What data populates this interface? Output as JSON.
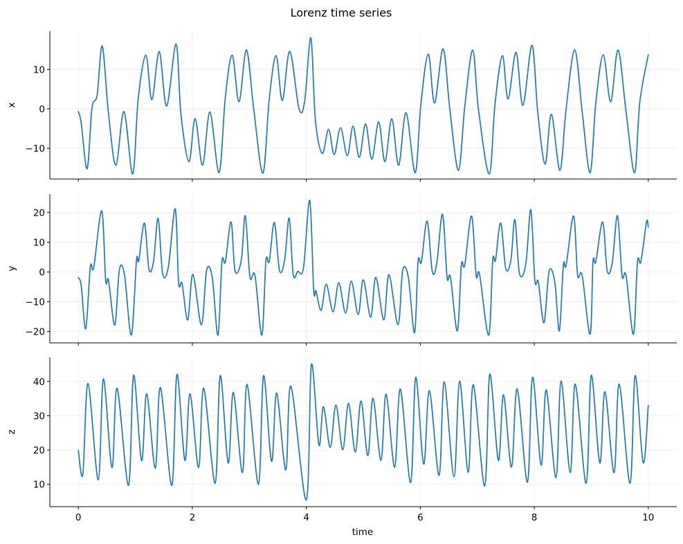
{
  "figure": {
    "title": "Lorenz time series",
    "xlabel": "time",
    "line_color": "#1f77b4"
  },
  "chart_data": {
    "type": "line",
    "title": "Lorenz time series",
    "xlabel": "time",
    "xlim": [
      -0.5,
      10.5
    ],
    "xticks": [
      0,
      2,
      4,
      6,
      8,
      10
    ],
    "grid": true,
    "legend": null,
    "subplots": [
      {
        "ylabel": "x",
        "ylim": [
          -17.8,
          19.7
        ],
        "yticks": [
          -10,
          0,
          10
        ],
        "t": [
          0,
          0.05,
          0.154,
          0.24,
          0.33,
          0.42,
          0.53,
          0.66,
          0.8,
          0.955,
          1.05,
          1.185,
          1.29,
          1.42,
          1.55,
          1.715,
          1.8,
          1.94,
          2.05,
          2.18,
          2.31,
          2.47,
          2.58,
          2.7,
          2.82,
          2.95,
          3.08,
          3.24,
          3.35,
          3.47,
          3.58,
          3.71,
          3.87,
          3.97,
          4.08,
          4.16,
          4.28,
          4.39,
          4.49,
          4.6,
          4.72,
          4.82,
          4.93,
          5.04,
          5.15,
          5.27,
          5.38,
          5.5,
          5.62,
          5.75,
          5.91,
          6.01,
          6.14,
          6.25,
          6.4,
          6.52,
          6.67,
          6.78,
          6.92,
          7.02,
          7.21,
          7.31,
          7.44,
          7.54,
          7.68,
          7.8,
          7.96,
          8.06,
          8.19,
          8.3,
          8.45,
          8.56,
          8.71,
          8.84,
          8.98,
          9.08,
          9.21,
          9.34,
          9.47,
          9.61,
          9.76,
          9.85,
          10.0
        ],
        "values": [
          -0.7,
          -3.5,
          -15.2,
          0.2,
          3.5,
          15.9,
          -1.2,
          -14.3,
          -0.7,
          -16.5,
          2.5,
          13.6,
          2.3,
          14.5,
          0.7,
          16.4,
          -1.2,
          -13.4,
          -2.5,
          -14.3,
          -0.8,
          -16.2,
          3.0,
          13.6,
          1.8,
          14.9,
          -0.4,
          -16.3,
          2.5,
          13.5,
          2.1,
          14.6,
          0.2,
          1.8,
          18.0,
          -3.0,
          -11.3,
          -5.2,
          -11.6,
          -4.8,
          -11.9,
          -4.4,
          -12.3,
          -3.8,
          -12.8,
          -3.3,
          -13.4,
          -2.5,
          -14.3,
          -1.0,
          -16.2,
          1.1,
          13.9,
          1.5,
          15.2,
          -0.4,
          -15.6,
          0.5,
          14.9,
          -0.1,
          -16.5,
          1.1,
          13.5,
          2.5,
          14.3,
          0.9,
          16.1,
          -0.7,
          -14.0,
          -1.4,
          -15.6,
          0.2,
          14.9,
          -0.7,
          -16.2,
          1.6,
          13.7,
          1.8,
          14.9,
          -0.7,
          -16.2,
          1.6,
          13.7
        ]
      },
      {
        "ylabel": "y",
        "ylim": [
          -23.8,
          26.1
        ],
        "yticks": [
          -20,
          -10,
          0,
          10,
          20
        ],
        "t": [
          0,
          0.05,
          0.13,
          0.21,
          0.27,
          0.41,
          0.48,
          0.53,
          0.64,
          0.72,
          0.81,
          0.93,
          1.02,
          1.06,
          1.16,
          1.24,
          1.32,
          1.4,
          1.48,
          1.58,
          1.7,
          1.76,
          1.82,
          1.92,
          2.01,
          2.16,
          2.25,
          2.35,
          2.45,
          2.52,
          2.58,
          2.68,
          2.75,
          2.86,
          2.93,
          3.01,
          3.1,
          3.22,
          3.29,
          3.35,
          3.44,
          3.53,
          3.62,
          3.7,
          3.77,
          3.85,
          3.95,
          4.06,
          4.13,
          4.17,
          4.26,
          4.35,
          4.47,
          4.57,
          4.69,
          4.79,
          4.91,
          5.0,
          5.13,
          5.22,
          5.36,
          5.45,
          5.61,
          5.69,
          5.79,
          5.9,
          5.96,
          6.02,
          6.12,
          6.21,
          6.29,
          6.39,
          6.47,
          6.53,
          6.65,
          6.72,
          6.78,
          6.9,
          6.98,
          7.04,
          7.2,
          7.27,
          7.32,
          7.41,
          7.5,
          7.59,
          7.66,
          7.74,
          7.85,
          7.94,
          8.01,
          8.07,
          8.17,
          8.26,
          8.36,
          8.44,
          8.51,
          8.56,
          8.69,
          8.76,
          8.84,
          8.98,
          9.03,
          9.08,
          9.2,
          9.28,
          9.37,
          9.46,
          9.54,
          9.61,
          9.74,
          9.81,
          9.87,
          9.97,
          10.0
        ],
        "values": [
          -1.9,
          -4.5,
          -19.1,
          1.7,
          1.5,
          20.5,
          -2.8,
          -2.8,
          -17.8,
          0.7,
          -1.0,
          -21.2,
          3.8,
          3.8,
          16.4,
          0.9,
          3.6,
          18.0,
          -0.6,
          1.7,
          21.2,
          -3.6,
          -3.9,
          -16.1,
          -0.8,
          -17.8,
          0.5,
          -1.8,
          -21.2,
          3.4,
          3.4,
          16.8,
          0.3,
          4.0,
          18.9,
          -1.6,
          -1.2,
          -21.2,
          3.6,
          3.6,
          16.6,
          0.5,
          4.0,
          18.1,
          -0.8,
          0.2,
          1.3,
          24.0,
          -6.0,
          -6.4,
          -12.9,
          -4.1,
          -13.4,
          -3.6,
          -13.8,
          -3.1,
          -14.3,
          -2.6,
          -15.2,
          -1.8,
          -16.1,
          -0.9,
          -17.7,
          0.4,
          -1.8,
          -20.4,
          3.4,
          3.4,
          17.1,
          0.2,
          2.9,
          19.4,
          -1.8,
          -1.8,
          -19.8,
          2.3,
          2.3,
          18.8,
          -1.2,
          -0.8,
          -21.2,
          3.9,
          4.0,
          16.4,
          1.1,
          4.0,
          17.6,
          -0.5,
          2.5,
          20.9,
          -2.9,
          -3.3,
          -17.0,
          0.2,
          -3.3,
          -19.8,
          2.3,
          2.3,
          18.8,
          -1.0,
          -1.2,
          -20.9,
          3.4,
          3.4,
          16.8,
          0.3,
          3.3,
          18.9,
          -1.2,
          -1.2,
          -20.9,
          3.4,
          3.4,
          16.8,
          15.0
        ]
      },
      {
        "ylabel": "z",
        "ylim": [
          3.5,
          47.0
        ],
        "yticks": [
          10,
          20,
          30,
          40
        ],
        "t": [
          0,
          0.08,
          0.17,
          0.35,
          0.44,
          0.59,
          0.68,
          0.88,
          0.97,
          1.11,
          1.2,
          1.35,
          1.44,
          1.64,
          1.73,
          1.87,
          1.96,
          2.11,
          2.2,
          2.4,
          2.49,
          2.63,
          2.72,
          2.88,
          2.96,
          3.16,
          3.25,
          3.39,
          3.48,
          3.64,
          3.73,
          4.0,
          4.09,
          4.22,
          4.3,
          4.42,
          4.52,
          4.64,
          4.74,
          4.86,
          4.96,
          5.08,
          5.17,
          5.31,
          5.4,
          5.55,
          5.65,
          5.83,
          5.92,
          6.06,
          6.16,
          6.33,
          6.42,
          6.59,
          6.69,
          6.84,
          6.93,
          7.13,
          7.22,
          7.37,
          7.46,
          7.6,
          7.7,
          7.88,
          7.97,
          8.12,
          8.21,
          8.38,
          8.47,
          8.63,
          8.72,
          8.91,
          9.0,
          9.15,
          9.24,
          9.4,
          9.49,
          9.68,
          9.77,
          9.91,
          10.0
        ],
        "values": [
          19.9,
          13.0,
          39.4,
          11.3,
          40.7,
          14.9,
          38.0,
          9.7,
          41.8,
          16.9,
          36.4,
          14.7,
          38.2,
          9.7,
          42.0,
          17.0,
          36.4,
          14.9,
          38.0,
          10.3,
          41.7,
          16.2,
          36.8,
          13.4,
          39.1,
          10.0,
          41.7,
          16.7,
          36.6,
          14.2,
          38.6,
          5.5,
          44.9,
          21.5,
          32.6,
          20.8,
          33.1,
          20.1,
          33.6,
          19.4,
          34.3,
          18.4,
          35.1,
          17.0,
          36.3,
          15.0,
          37.8,
          10.5,
          41.2,
          15.9,
          37.3,
          12.6,
          39.9,
          12.2,
          40.1,
          13.5,
          39.0,
          9.5,
          42.1,
          17.0,
          36.1,
          15.0,
          37.8,
          10.6,
          41.2,
          15.6,
          37.5,
          12.0,
          40.1,
          13.4,
          39.2,
          10.3,
          41.8,
          16.2,
          37.0,
          13.4,
          39.2,
          10.3,
          41.7,
          16.3,
          33.0
        ]
      }
    ]
  }
}
